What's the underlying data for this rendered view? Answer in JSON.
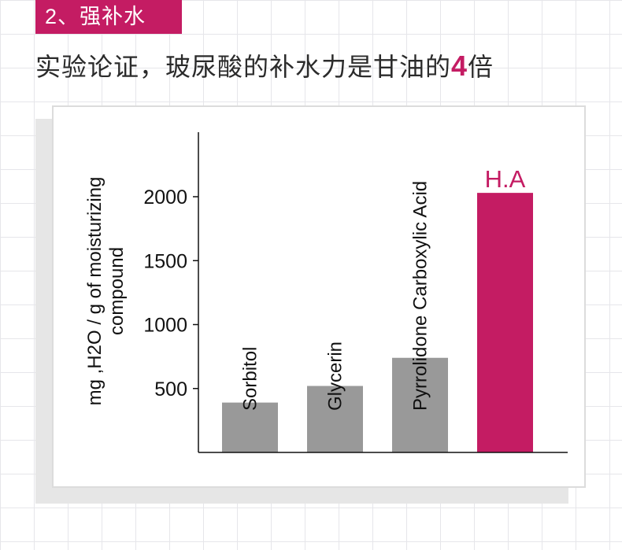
{
  "section": {
    "tag": "2、强补水"
  },
  "headline": {
    "text_before": "实验论证，玻尿酸的补水力是甘油的",
    "highlight": "4",
    "text_after": "倍"
  },
  "colors": {
    "accent": "#c41c63",
    "bar_default": "#999999"
  },
  "chart_data": {
    "type": "bar",
    "title": "",
    "xlabel": "",
    "ylabel_lines": [
      "mg ,H2O / g of moisturizing",
      "compound"
    ],
    "categories": [
      "Sorbitol",
      "Glycerin",
      "Pyrrolidone Carboxylic Acid",
      "H.A"
    ],
    "values": [
      390,
      520,
      740,
      2030
    ],
    "highlight_index": 3,
    "yticks": [
      500,
      1000,
      1500,
      2000
    ],
    "ylim": [
      0,
      2500
    ],
    "grid": false,
    "legend": "none"
  }
}
